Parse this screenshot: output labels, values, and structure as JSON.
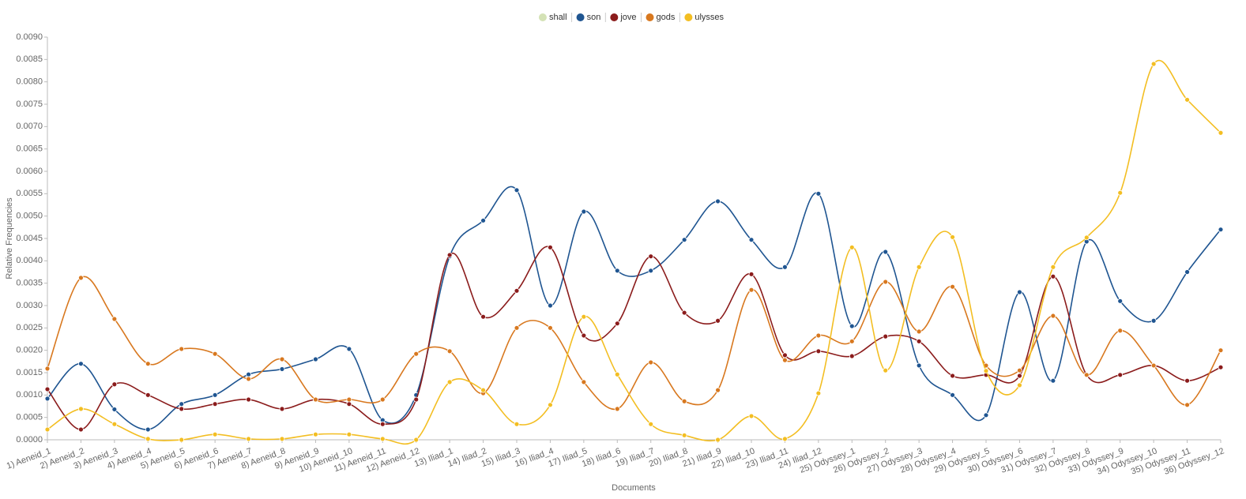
{
  "chart_data": {
    "type": "line",
    "x_label": "Documents",
    "y_label": "Relative Frequencies",
    "categories": [
      "1) Aeneid_1",
      "2) Aeneid_2",
      "3) Aeneid_3",
      "4) Aeneid_4",
      "5) Aeneid_5",
      "6) Aeneid_6",
      "7) Aeneid_7",
      "8) Aeneid_8",
      "9) Aeneid_9",
      "10) Aeneid_10",
      "11) Aeneid_11",
      "12) Aeneid_12",
      "13) Iliad_1",
      "14) Iliad_2",
      "15) Iliad_3",
      "16) Iliad_4",
      "17) Iliad_5",
      "18) Iliad_6",
      "19) Iliad_7",
      "20) Iliad_8",
      "21) Iliad_9",
      "22) Iliad_10",
      "23) Iliad_11",
      "24) Iliad_12",
      "25) Odyssey_1",
      "26) Odyssey_2",
      "27) Odyssey_3",
      "28) Odyssey_4",
      "29) Odyssey_5",
      "30) Odyssey_6",
      "31) Odyssey_7",
      "32) Odyssey_8",
      "33) Odyssey_9",
      "34) Odyssey_10",
      "35) Odyssey_11",
      "36) Odyssey_12"
    ],
    "series": [
      {
        "name": "shall",
        "color": "#d4e2b6",
        "values": [
          null,
          null,
          null,
          null,
          null,
          null,
          null,
          null,
          null,
          null,
          null,
          null,
          null,
          null,
          null,
          null,
          null,
          null,
          null,
          null,
          null,
          null,
          null,
          null,
          null,
          null,
          null,
          null,
          null,
          null,
          null,
          null,
          null,
          null,
          null,
          null
        ]
      },
      {
        "name": "son",
        "color": "#1f5591",
        "values": [
          0.00092,
          0.0017,
          0.00068,
          0.00023,
          0.0008,
          0.001,
          0.00146,
          0.00158,
          0.0018,
          0.00203,
          0.00044,
          0.001,
          0.0041,
          0.0049,
          0.00558,
          0.003,
          0.0051,
          0.00378,
          0.00378,
          0.00447,
          0.00533,
          0.00447,
          0.00386,
          0.0055,
          0.00254,
          0.0042,
          0.00166,
          0.001,
          0.00055,
          0.0033,
          0.00132,
          0.00443,
          0.0031,
          0.00266,
          0.00375,
          0.0047
        ]
      },
      {
        "name": "jove",
        "color": "#8b1c1c",
        "values": [
          0.00113,
          0.00023,
          0.00124,
          0.001,
          0.00069,
          0.0008,
          0.0009,
          0.00069,
          0.0009,
          0.0008,
          0.00035,
          0.0009,
          0.00413,
          0.00275,
          0.00333,
          0.0043,
          0.00233,
          0.0026,
          0.0041,
          0.00284,
          0.00266,
          0.0037,
          0.00189,
          0.00198,
          0.00187,
          0.00231,
          0.0022,
          0.00143,
          0.00145,
          0.00143,
          0.00365,
          0.00145,
          0.00145,
          0.00166,
          0.00132,
          0.00162
        ]
      },
      {
        "name": "gods",
        "color": "#d8781f",
        "values": [
          0.00159,
          0.00362,
          0.0027,
          0.0017,
          0.00203,
          0.00192,
          0.00136,
          0.0018,
          0.0009,
          0.0009,
          0.0009,
          0.00192,
          0.00198,
          0.00104,
          0.0025,
          0.0025,
          0.00129,
          0.00069,
          0.00173,
          0.00086,
          0.00111,
          0.00335,
          0.00178,
          0.00233,
          0.0022,
          0.00353,
          0.00242,
          0.00342,
          0.00166,
          0.00155,
          0.00277,
          0.00145,
          0.00244,
          0.00166,
          0.00078,
          0.002
        ]
      },
      {
        "name": "ulysses",
        "color": "#f3be22",
        "values": [
          0.00023,
          0.00069,
          0.00035,
          2e-05,
          0,
          0.00012,
          2e-05,
          2e-05,
          0.00012,
          0.00012,
          2e-05,
          0,
          0.00129,
          0.00111,
          0.00035,
          0.00078,
          0.00275,
          0.00146,
          0.00035,
          0.0001,
          0,
          0.00053,
          2e-05,
          0.00104,
          0.0043,
          0.00155,
          0.00386,
          0.00453,
          0.00154,
          0.00122,
          0.00386,
          0.00452,
          0.00552,
          0.0084,
          0.0076,
          0.00686
        ]
      }
    ],
    "ylim": [
      0,
      0.009
    ],
    "yticks": [
      {
        "value": 0,
        "label": "0.0000"
      },
      0.0005,
      {
        "value": 0.001,
        "label": "0.0010"
      },
      0.0015,
      {
        "value": 0.002,
        "label": "0.0020"
      },
      0.0025,
      {
        "value": 0.003,
        "label": "0.0030"
      },
      0.0035,
      {
        "value": 0.004,
        "label": "0.0040"
      },
      0.0045,
      {
        "value": 0.005,
        "label": "0.0050"
      },
      0.0055,
      {
        "value": 0.006,
        "label": "0.0060"
      },
      0.0065,
      {
        "value": 0.007,
        "label": "0.0070"
      },
      0.0075,
      {
        "value": 0.008,
        "label": "0.0080"
      },
      0.0085,
      {
        "value": 0.009,
        "label": "0.0090"
      }
    ],
    "grid": false,
    "legend": "top"
  }
}
